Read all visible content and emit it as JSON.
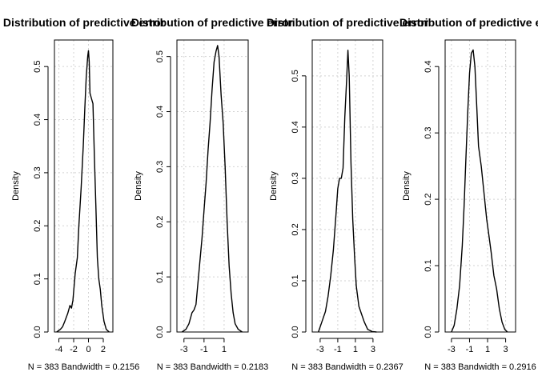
{
  "chart_data": [
    {
      "type": "line",
      "title": "Distribution of predictive error",
      "xlabel": "N = 383   Bandwidth = 0.2156",
      "ylabel": "Density",
      "xlim": [
        -4.6,
        3.3
      ],
      "ylim": [
        0,
        0.55
      ],
      "x_ticks": [
        -4,
        -2,
        0,
        2
      ],
      "y_ticks": [
        0.0,
        0.1,
        0.2,
        0.3,
        0.4,
        0.5
      ],
      "grid": true,
      "series": [
        {
          "x": [
            -4.3,
            -3.8,
            -3.5,
            -3.2,
            -2.8,
            -2.5,
            -2.3,
            -2.1,
            -1.8,
            -1.5,
            -1.3,
            -1.0,
            -0.7,
            -0.5,
            -0.3,
            -0.1,
            0.0,
            0.1,
            0.2,
            0.4,
            0.6,
            0.8,
            1.0,
            1.2,
            1.4,
            1.6,
            1.8,
            2.1,
            2.4,
            2.8
          ],
          "y": [
            0.0,
            0.005,
            0.01,
            0.02,
            0.035,
            0.05,
            0.045,
            0.06,
            0.11,
            0.14,
            0.2,
            0.27,
            0.35,
            0.42,
            0.48,
            0.52,
            0.53,
            0.51,
            0.45,
            0.44,
            0.43,
            0.33,
            0.24,
            0.14,
            0.1,
            0.08,
            0.05,
            0.02,
            0.005,
            0.0
          ]
        }
      ]
    },
    {
      "type": "line",
      "title": "Distribution of predictive error",
      "xlabel": "N = 383   Bandwidth = 0.2183",
      "ylabel": "Density",
      "xlim": [
        -3.7,
        3.4
      ],
      "ylim": [
        0,
        0.53
      ],
      "x_ticks": [
        -3,
        -1,
        1
      ],
      "y_ticks": [
        0.0,
        0.1,
        0.2,
        0.3,
        0.4,
        0.5
      ],
      "grid": true,
      "series": [
        {
          "x": [
            -3.2,
            -2.8,
            -2.5,
            -2.2,
            -2.0,
            -1.8,
            -1.6,
            -1.4,
            -1.2,
            -1.0,
            -0.8,
            -0.6,
            -0.4,
            -0.2,
            0.0,
            0.2,
            0.35,
            0.5,
            0.7,
            0.9,
            1.1,
            1.3,
            1.5,
            1.7,
            1.9,
            2.1,
            2.4,
            2.8
          ],
          "y": [
            0.0,
            0.005,
            0.015,
            0.035,
            0.04,
            0.05,
            0.09,
            0.13,
            0.17,
            0.22,
            0.27,
            0.33,
            0.38,
            0.44,
            0.49,
            0.51,
            0.52,
            0.5,
            0.43,
            0.38,
            0.3,
            0.2,
            0.12,
            0.07,
            0.035,
            0.015,
            0.005,
            0.0
          ]
        }
      ]
    },
    {
      "type": "line",
      "title": "Distribution of predictive error",
      "xlabel": "N = 383   Bandwidth = 0.2367",
      "ylabel": "Density",
      "xlim": [
        -3.9,
        4.1
      ],
      "ylim": [
        0,
        0.57
      ],
      "x_ticks": [
        -3,
        -1,
        1,
        3
      ],
      "y_ticks": [
        0.0,
        0.1,
        0.2,
        0.3,
        0.4,
        0.5
      ],
      "grid": true,
      "series": [
        {
          "x": [
            -3.2,
            -2.8,
            -2.4,
            -2.1,
            -1.8,
            -1.5,
            -1.2,
            -1.0,
            -0.8,
            -0.6,
            -0.4,
            -0.2,
            0.0,
            0.15,
            0.3,
            0.5,
            0.7,
            0.9,
            1.1,
            1.4,
            1.7,
            2.0,
            2.4,
            2.9,
            3.4
          ],
          "y": [
            0.0,
            0.02,
            0.04,
            0.07,
            0.11,
            0.16,
            0.23,
            0.28,
            0.3,
            0.3,
            0.32,
            0.42,
            0.49,
            0.55,
            0.5,
            0.33,
            0.22,
            0.15,
            0.09,
            0.05,
            0.035,
            0.02,
            0.005,
            0.001,
            0.0
          ]
        }
      ]
    },
    {
      "type": "line",
      "title": "Distribution of predictive error",
      "xlabel": "N = 383   Bandwidth = 0.2916",
      "ylabel": "Density",
      "xlim": [
        -3.7,
        4.1
      ],
      "ylim": [
        0,
        0.44
      ],
      "x_ticks": [
        -3,
        -1,
        1,
        3
      ],
      "y_ticks": [
        0.0,
        0.1,
        0.2,
        0.3,
        0.4
      ],
      "grid": true,
      "series": [
        {
          "x": [
            -3.0,
            -2.7,
            -2.4,
            -2.1,
            -1.8,
            -1.6,
            -1.4,
            -1.2,
            -1.0,
            -0.8,
            -0.6,
            -0.4,
            -0.2,
            0.0,
            0.3,
            0.6,
            0.9,
            1.1,
            1.4,
            1.7,
            2.0,
            2.3,
            2.6,
            2.9,
            3.2
          ],
          "y": [
            0.0,
            0.01,
            0.035,
            0.07,
            0.13,
            0.19,
            0.26,
            0.33,
            0.39,
            0.42,
            0.425,
            0.4,
            0.34,
            0.28,
            0.25,
            0.21,
            0.17,
            0.15,
            0.12,
            0.085,
            0.065,
            0.035,
            0.015,
            0.004,
            0.0
          ]
        }
      ]
    }
  ]
}
